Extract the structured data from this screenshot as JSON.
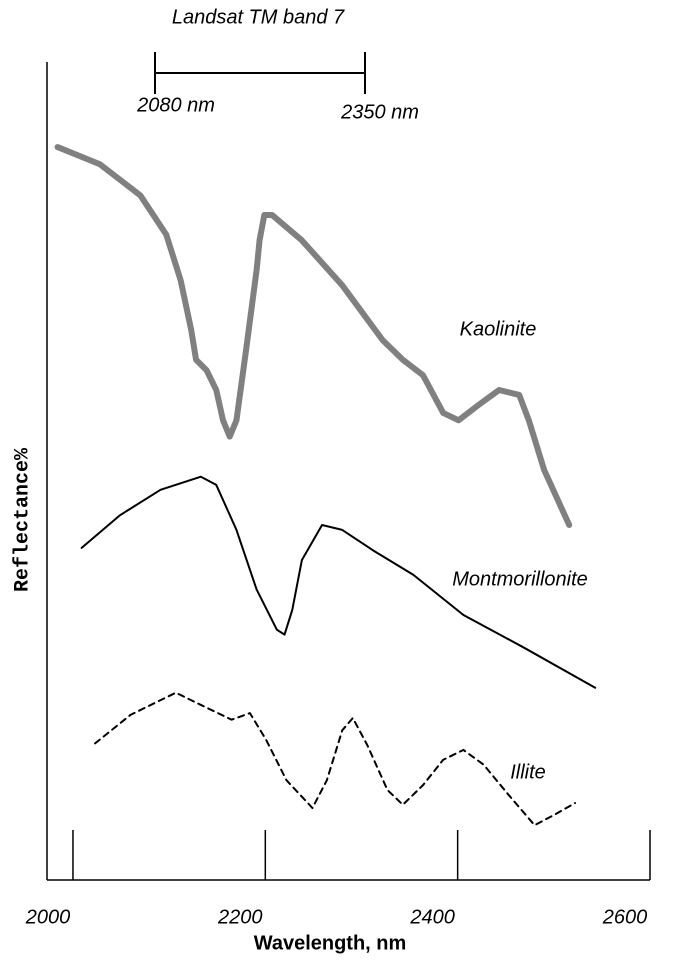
{
  "chart_data": {
    "type": "line",
    "x_label": "Wavelength, nm",
    "y_label": "Reflectance%",
    "annotations": {
      "band": "Landsat TM band 7",
      "band_start": "2080 nm",
      "band_end": "2350 nm"
    },
    "xlim": [
      1973,
      2600
    ],
    "xticks": [
      2000,
      2200,
      2400,
      2600
    ],
    "ylim": [
      0,
      100
    ],
    "series": [
      {
        "name": "Kaolinite",
        "color": "#808080",
        "width": 6,
        "dashed": false,
        "x": [
          1984,
          2028,
          2070,
          2097,
          2112,
          2123,
          2128,
          2139,
          2149,
          2156,
          2163,
          2170,
          2180,
          2191,
          2194,
          2199,
          2207,
          2238,
          2280,
          2322,
          2343,
          2364,
          2385,
          2401,
          2422,
          2443,
          2464,
          2474,
          2490,
          2516
        ],
        "values": [
          89.6,
          87.5,
          83.7,
          78.9,
          73.3,
          67.2,
          63.6,
          62.3,
          59.9,
          56.2,
          54.2,
          56.2,
          64.8,
          74.6,
          78.2,
          81.3,
          81.3,
          78.2,
          72.7,
          66.0,
          63.6,
          61.7,
          57.1,
          56.2,
          58.1,
          59.9,
          59.3,
          56.2,
          50.1,
          43.4
        ]
      },
      {
        "name": "Montmorillonite",
        "color": "#000000",
        "width": 2,
        "dashed": false,
        "x": [
          2009,
          2049,
          2091,
          2133,
          2149,
          2170,
          2191,
          2212,
          2220,
          2228,
          2238,
          2259,
          2280,
          2312,
          2354,
          2406,
          2469,
          2543
        ],
        "values": [
          40.6,
          44.6,
          47.7,
          49.3,
          48.3,
          42.8,
          35.5,
          30.6,
          30.0,
          33.0,
          39.1,
          43.4,
          42.8,
          40.3,
          37.3,
          32.4,
          28.4,
          23.5
        ]
      },
      {
        "name": "Illite",
        "color": "#000000",
        "width": 2,
        "dashed": true,
        "x": [
          2023,
          2060,
          2107,
          2133,
          2165,
          2184,
          2201,
          2222,
          2249,
          2264,
          2280,
          2291,
          2306,
          2327,
          2343,
          2364,
          2385,
          2406,
          2427,
          2453,
          2480,
          2501,
          2522
        ],
        "values": [
          16.7,
          20.2,
          22.9,
          21.4,
          19.6,
          20.4,
          17.1,
          12.2,
          8.8,
          12.2,
          18.3,
          19.8,
          16.5,
          11.0,
          9.2,
          11.6,
          14.7,
          15.9,
          14.1,
          10.4,
          6.7,
          8.0,
          9.4
        ]
      }
    ]
  }
}
